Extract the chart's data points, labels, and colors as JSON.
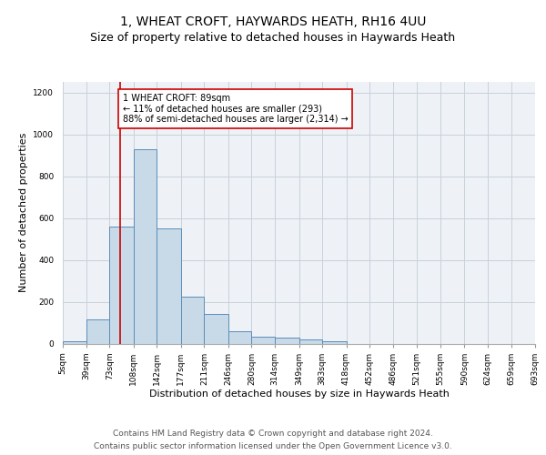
{
  "title": "1, WHEAT CROFT, HAYWARDS HEATH, RH16 4UU",
  "subtitle": "Size of property relative to detached houses in Haywards Heath",
  "xlabel": "Distribution of detached houses by size in Haywards Heath",
  "ylabel": "Number of detached properties",
  "bar_color": "#c8d9e8",
  "bar_edge_color": "#5b8db8",
  "grid_color": "#c8d0da",
  "background_color": "#eef2f7",
  "vline_color": "#cc0000",
  "vline_x": 89,
  "annotation_text": "1 WHEAT CROFT: 89sqm\n← 11% of detached houses are smaller (293)\n88% of semi-detached houses are larger (2,314) →",
  "annotation_box_color": "#ffffff",
  "annotation_box_edge": "#cc0000",
  "bin_edges": [
    5,
    39,
    73,
    108,
    142,
    177,
    211,
    246,
    280,
    314,
    349,
    383,
    418,
    452,
    486,
    521,
    555,
    590,
    624,
    659,
    693
  ],
  "bar_heights": [
    10,
    115,
    560,
    930,
    550,
    225,
    140,
    58,
    33,
    30,
    20,
    13,
    0,
    0,
    0,
    0,
    0,
    0,
    0,
    0
  ],
  "ylim": [
    0,
    1250
  ],
  "yticks": [
    0,
    200,
    400,
    600,
    800,
    1000,
    1200
  ],
  "tick_labels": [
    "5sqm",
    "39sqm",
    "73sqm",
    "108sqm",
    "142sqm",
    "177sqm",
    "211sqm",
    "246sqm",
    "280sqm",
    "314sqm",
    "349sqm",
    "383sqm",
    "418sqm",
    "452sqm",
    "486sqm",
    "521sqm",
    "555sqm",
    "590sqm",
    "624sqm",
    "659sqm",
    "693sqm"
  ],
  "footer_line1": "Contains HM Land Registry data © Crown copyright and database right 2024.",
  "footer_line2": "Contains public sector information licensed under the Open Government Licence v3.0.",
  "title_fontsize": 10,
  "subtitle_fontsize": 9,
  "axis_label_fontsize": 8,
  "tick_fontsize": 6.5,
  "footer_fontsize": 6.5,
  "annotation_fontsize": 7
}
